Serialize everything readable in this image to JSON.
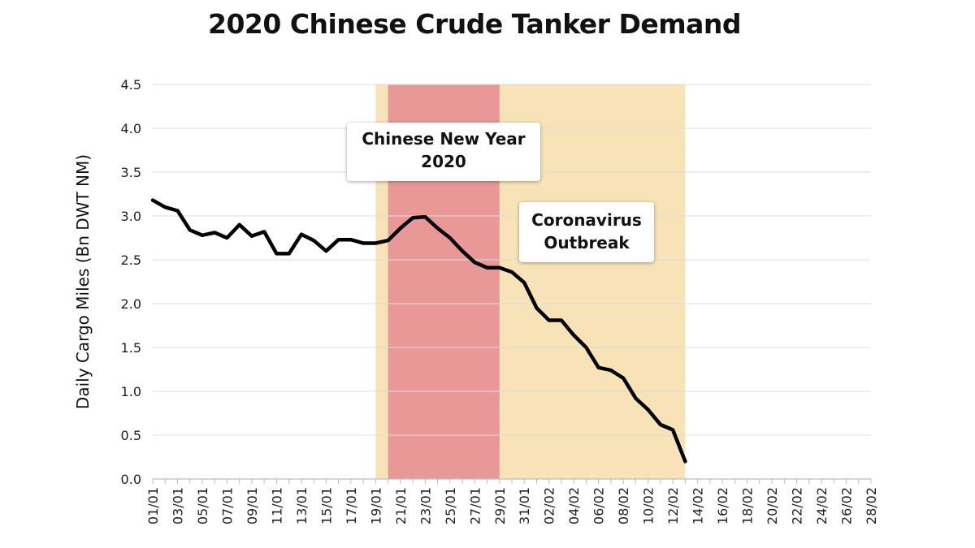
{
  "chart_data": {
    "type": "line",
    "title": "2020 Chinese Crude Tanker Demand",
    "ylabel": "Daily Cargo Miles (Bn DWT NM)",
    "xlabel": "",
    "ylim": [
      0,
      4.5
    ],
    "yticks": [
      "0.0",
      "0.5",
      "1.0",
      "1.5",
      "2.0",
      "2.5",
      "3.0",
      "3.5",
      "4.0",
      "4.5"
    ],
    "grid": "horizontal",
    "x_tick_labels": [
      "01/01",
      "03/01",
      "05/01",
      "07/01",
      "09/01",
      "11/01",
      "13/01",
      "15/01",
      "17/01",
      "19/01",
      "21/01",
      "23/01",
      "25/01",
      "27/01",
      "29/01",
      "31/01",
      "02/02",
      "04/02",
      "06/02",
      "08/02",
      "10/02",
      "12/02",
      "14/02",
      "16/02",
      "18/02",
      "20/02",
      "22/02",
      "24/02",
      "26/02",
      "28/02"
    ],
    "x_tick_day_index": [
      0,
      2,
      4,
      6,
      8,
      10,
      12,
      14,
      16,
      18,
      20,
      22,
      24,
      26,
      28,
      30,
      32,
      34,
      36,
      38,
      40,
      42,
      44,
      46,
      48,
      50,
      52,
      54,
      56,
      58
    ],
    "x_start_date": "2020-01-01",
    "x_end_date": "2020-02-28",
    "series": [
      {
        "name": "",
        "x": [
          "01/01",
          "02/01",
          "03/01",
          "04/01",
          "05/01",
          "06/01",
          "07/01",
          "08/01",
          "09/01",
          "10/01",
          "11/01",
          "12/01",
          "13/01",
          "14/01",
          "15/01",
          "16/01",
          "17/01",
          "18/01",
          "19/01",
          "20/01",
          "21/01",
          "22/01",
          "23/01",
          "24/01",
          "25/01",
          "26/01",
          "27/01",
          "28/01",
          "29/01",
          "30/01",
          "31/01",
          "01/02",
          "02/02",
          "03/02",
          "04/02",
          "05/02",
          "06/02",
          "07/02",
          "08/02",
          "09/02",
          "10/02",
          "11/02",
          "12/02",
          "13/02"
        ],
        "values": [
          3.18,
          3.1,
          3.06,
          2.84,
          2.78,
          2.81,
          2.75,
          2.9,
          2.77,
          2.82,
          2.57,
          2.57,
          2.79,
          2.72,
          2.6,
          2.73,
          2.73,
          2.69,
          2.69,
          2.72,
          2.86,
          2.98,
          2.99,
          2.86,
          2.75,
          2.6,
          2.47,
          2.41,
          2.41,
          2.36,
          2.24,
          1.95,
          1.81,
          1.81,
          1.64,
          1.5,
          1.27,
          1.24,
          1.15,
          0.92,
          0.79,
          0.62,
          0.56,
          0.2
        ],
        "color": "#000000"
      }
    ],
    "shaded_regions": [
      {
        "start": "19/01",
        "end": "13/02",
        "color": "#f8e3b8"
      },
      {
        "start": "20/01",
        "end": "29/01",
        "color": "#e99898"
      }
    ],
    "annotations": [
      {
        "id": "cny",
        "lines": [
          "Chinese New Year",
          "2020"
        ]
      },
      {
        "id": "covid",
        "lines": [
          "Coronavirus",
          "Outbreak"
        ]
      }
    ]
  }
}
